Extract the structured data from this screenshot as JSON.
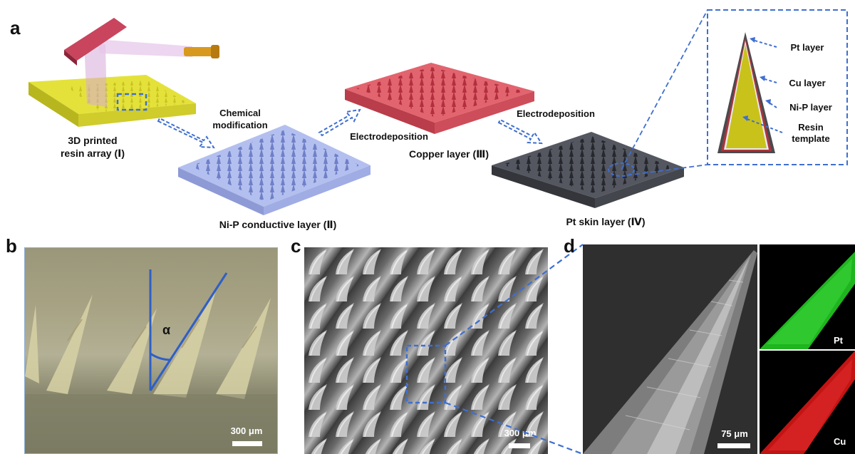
{
  "panel_a": {
    "letter": "a",
    "step1_caption_line1": "3D printed",
    "step1_caption_line2": "resin array (Ⅰ)",
    "arrow1_line1": "Chemical",
    "arrow1_line2": "modification",
    "step2_caption": "Ni-P conductive layer (Ⅱ)",
    "arrow2": "Electrodeposition",
    "step3_caption": "Copper layer (Ⅲ)",
    "arrow3": "Electrodeposition",
    "step4_caption": "Pt skin layer (Ⅳ)",
    "legend": {
      "pt": "Pt layer",
      "cu": "Cu layer",
      "nip": "Ni-P layer",
      "resin_line1": "Resin",
      "resin_line2": "template"
    },
    "colors": {
      "resin": "#e4e23a",
      "nip": "#b3bfee",
      "copper": "#e2646e",
      "pt": "#545760",
      "dash": "#3f6fd0"
    }
  },
  "panel_b": {
    "letter": "b",
    "angle_symbol": "α",
    "scale": "300 μm"
  },
  "panel_c": {
    "letter": "c",
    "scale": "300 μm"
  },
  "panel_d": {
    "letter": "d",
    "scale": "75 μm",
    "map_top": "Pt",
    "map_bottom": "Cu"
  }
}
